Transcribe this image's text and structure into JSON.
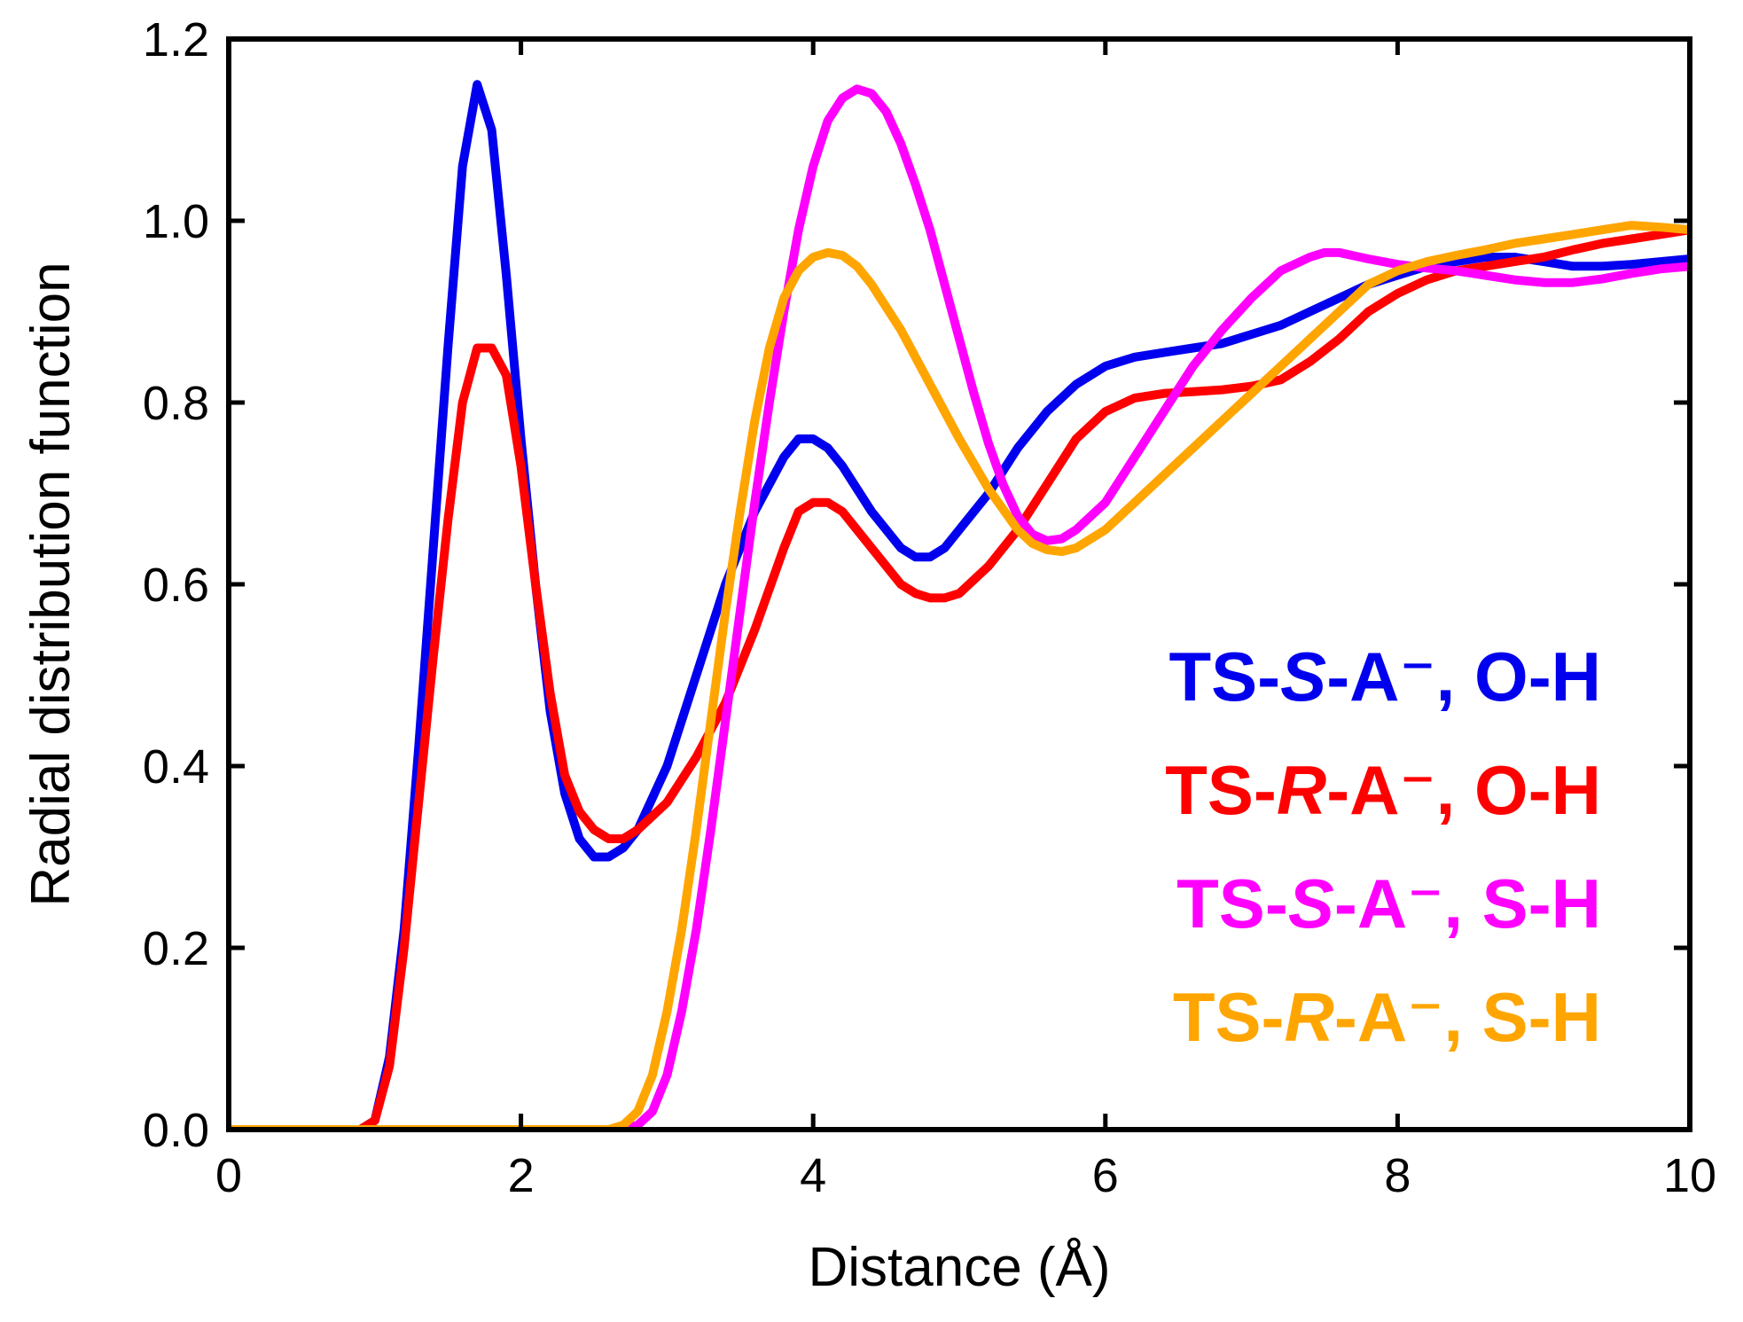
{
  "chart_data": {
    "type": "line",
    "title": "",
    "xlabel": "Distance (Å)",
    "ylabel": "Radial distribution function",
    "xlim": [
      0,
      10
    ],
    "ylim": [
      0,
      1.2
    ],
    "x_ticks": [
      0,
      2,
      4,
      6,
      8,
      10
    ],
    "y_ticks": [
      0,
      0.2,
      0.4,
      0.6,
      0.8,
      1.0,
      1.2
    ],
    "x_tick_labels": [
      "0",
      "2",
      "4",
      "6",
      "8",
      "10"
    ],
    "y_tick_labels": [
      "0.0",
      "0.2",
      "0.4",
      "0.6",
      "0.8",
      "1.0",
      "1.2"
    ],
    "grid": false,
    "legend_position": "right",
    "series": [
      {
        "name": "TS-S-A⁻, O-H",
        "legend_parts": [
          {
            "text": "TS-",
            "italic": false
          },
          {
            "text": "S",
            "italic": true
          },
          {
            "text": "-A⁻, O-H",
            "italic": false
          }
        ],
        "color": "#0000ee",
        "points": [
          [
            0,
            0
          ],
          [
            0.9,
            0
          ],
          [
            1.0,
            0.01
          ],
          [
            1.1,
            0.08
          ],
          [
            1.2,
            0.22
          ],
          [
            1.3,
            0.42
          ],
          [
            1.4,
            0.64
          ],
          [
            1.5,
            0.86
          ],
          [
            1.6,
            1.06
          ],
          [
            1.7,
            1.15
          ],
          [
            1.8,
            1.1
          ],
          [
            1.9,
            0.94
          ],
          [
            2.0,
            0.76
          ],
          [
            2.1,
            0.6
          ],
          [
            2.2,
            0.46
          ],
          [
            2.3,
            0.37
          ],
          [
            2.4,
            0.32
          ],
          [
            2.5,
            0.3
          ],
          [
            2.6,
            0.3
          ],
          [
            2.7,
            0.31
          ],
          [
            2.8,
            0.33
          ],
          [
            3.0,
            0.4
          ],
          [
            3.2,
            0.5
          ],
          [
            3.4,
            0.6
          ],
          [
            3.6,
            0.68
          ],
          [
            3.8,
            0.74
          ],
          [
            3.9,
            0.76
          ],
          [
            4.0,
            0.76
          ],
          [
            4.1,
            0.75
          ],
          [
            4.2,
            0.73
          ],
          [
            4.4,
            0.68
          ],
          [
            4.6,
            0.64
          ],
          [
            4.7,
            0.63
          ],
          [
            4.8,
            0.63
          ],
          [
            4.9,
            0.64
          ],
          [
            5.0,
            0.66
          ],
          [
            5.2,
            0.7
          ],
          [
            5.4,
            0.75
          ],
          [
            5.6,
            0.79
          ],
          [
            5.8,
            0.82
          ],
          [
            6.0,
            0.84
          ],
          [
            6.2,
            0.85
          ],
          [
            6.4,
            0.855
          ],
          [
            6.6,
            0.86
          ],
          [
            6.8,
            0.865
          ],
          [
            7.0,
            0.875
          ],
          [
            7.2,
            0.885
          ],
          [
            7.4,
            0.9
          ],
          [
            7.6,
            0.915
          ],
          [
            7.8,
            0.93
          ],
          [
            8.0,
            0.94
          ],
          [
            8.2,
            0.95
          ],
          [
            8.4,
            0.955
          ],
          [
            8.6,
            0.96
          ],
          [
            8.8,
            0.96
          ],
          [
            9.0,
            0.955
          ],
          [
            9.2,
            0.95
          ],
          [
            9.4,
            0.95
          ],
          [
            9.6,
            0.952
          ],
          [
            9.8,
            0.955
          ],
          [
            10.0,
            0.958
          ]
        ]
      },
      {
        "name": "TS-R-A⁻, O-H",
        "legend_parts": [
          {
            "text": "TS-",
            "italic": false
          },
          {
            "text": "R",
            "italic": true
          },
          {
            "text": "-A⁻, O-H",
            "italic": false
          }
        ],
        "color": "#ff0000",
        "points": [
          [
            0,
            0
          ],
          [
            0.9,
            0
          ],
          [
            1.0,
            0.01
          ],
          [
            1.1,
            0.07
          ],
          [
            1.2,
            0.2
          ],
          [
            1.3,
            0.36
          ],
          [
            1.4,
            0.52
          ],
          [
            1.5,
            0.67
          ],
          [
            1.6,
            0.8
          ],
          [
            1.7,
            0.86
          ],
          [
            1.8,
            0.86
          ],
          [
            1.9,
            0.83
          ],
          [
            2.0,
            0.73
          ],
          [
            2.1,
            0.6
          ],
          [
            2.2,
            0.48
          ],
          [
            2.3,
            0.39
          ],
          [
            2.4,
            0.35
          ],
          [
            2.5,
            0.33
          ],
          [
            2.6,
            0.32
          ],
          [
            2.7,
            0.32
          ],
          [
            2.8,
            0.33
          ],
          [
            3.0,
            0.36
          ],
          [
            3.2,
            0.41
          ],
          [
            3.4,
            0.47
          ],
          [
            3.6,
            0.55
          ],
          [
            3.8,
            0.64
          ],
          [
            3.9,
            0.68
          ],
          [
            4.0,
            0.69
          ],
          [
            4.1,
            0.69
          ],
          [
            4.2,
            0.68
          ],
          [
            4.4,
            0.64
          ],
          [
            4.6,
            0.6
          ],
          [
            4.7,
            0.59
          ],
          [
            4.8,
            0.585
          ],
          [
            4.9,
            0.585
          ],
          [
            5.0,
            0.59
          ],
          [
            5.2,
            0.62
          ],
          [
            5.4,
            0.66
          ],
          [
            5.6,
            0.71
          ],
          [
            5.8,
            0.76
          ],
          [
            6.0,
            0.79
          ],
          [
            6.2,
            0.805
          ],
          [
            6.4,
            0.81
          ],
          [
            6.6,
            0.812
          ],
          [
            6.8,
            0.814
          ],
          [
            7.0,
            0.818
          ],
          [
            7.2,
            0.825
          ],
          [
            7.4,
            0.845
          ],
          [
            7.6,
            0.87
          ],
          [
            7.8,
            0.9
          ],
          [
            8.0,
            0.92
          ],
          [
            8.2,
            0.935
          ],
          [
            8.4,
            0.945
          ],
          [
            8.6,
            0.95
          ],
          [
            8.8,
            0.955
          ],
          [
            9.0,
            0.96
          ],
          [
            9.2,
            0.968
          ],
          [
            9.4,
            0.975
          ],
          [
            9.6,
            0.98
          ],
          [
            9.8,
            0.985
          ],
          [
            10.0,
            0.99
          ]
        ]
      },
      {
        "name": "TS-S-A⁻, S-H",
        "legend_parts": [
          {
            "text": "TS-",
            "italic": false
          },
          {
            "text": "S",
            "italic": true
          },
          {
            "text": "-A⁻, S-H",
            "italic": false
          }
        ],
        "color": "#ff00ff",
        "points": [
          [
            0,
            0
          ],
          [
            2.7,
            0
          ],
          [
            2.8,
            0.005
          ],
          [
            2.9,
            0.02
          ],
          [
            3.0,
            0.06
          ],
          [
            3.1,
            0.13
          ],
          [
            3.2,
            0.22
          ],
          [
            3.3,
            0.33
          ],
          [
            3.4,
            0.45
          ],
          [
            3.5,
            0.57
          ],
          [
            3.6,
            0.69
          ],
          [
            3.7,
            0.8
          ],
          [
            3.8,
            0.9
          ],
          [
            3.9,
            0.99
          ],
          [
            4.0,
            1.06
          ],
          [
            4.1,
            1.11
          ],
          [
            4.2,
            1.135
          ],
          [
            4.3,
            1.145
          ],
          [
            4.4,
            1.14
          ],
          [
            4.5,
            1.12
          ],
          [
            4.6,
            1.085
          ],
          [
            4.7,
            1.04
          ],
          [
            4.8,
            0.99
          ],
          [
            4.9,
            0.93
          ],
          [
            5.0,
            0.87
          ],
          [
            5.1,
            0.81
          ],
          [
            5.2,
            0.755
          ],
          [
            5.3,
            0.71
          ],
          [
            5.4,
            0.675
          ],
          [
            5.5,
            0.655
          ],
          [
            5.6,
            0.648
          ],
          [
            5.7,
            0.65
          ],
          [
            5.8,
            0.66
          ],
          [
            6.0,
            0.69
          ],
          [
            6.2,
            0.74
          ],
          [
            6.4,
            0.79
          ],
          [
            6.6,
            0.84
          ],
          [
            6.8,
            0.88
          ],
          [
            7.0,
            0.915
          ],
          [
            7.2,
            0.945
          ],
          [
            7.4,
            0.96
          ],
          [
            7.5,
            0.965
          ],
          [
            7.6,
            0.965
          ],
          [
            7.8,
            0.958
          ],
          [
            8.0,
            0.952
          ],
          [
            8.2,
            0.948
          ],
          [
            8.4,
            0.945
          ],
          [
            8.6,
            0.94
          ],
          [
            8.8,
            0.935
          ],
          [
            9.0,
            0.932
          ],
          [
            9.2,
            0.932
          ],
          [
            9.4,
            0.936
          ],
          [
            9.6,
            0.942
          ],
          [
            9.8,
            0.947
          ],
          [
            10.0,
            0.95
          ]
        ]
      },
      {
        "name": "TS-R-A⁻, S-H",
        "legend_parts": [
          {
            "text": "TS-",
            "italic": false
          },
          {
            "text": "R",
            "italic": true
          },
          {
            "text": "-A⁻, S-H",
            "italic": false
          }
        ],
        "color": "#ffa500",
        "points": [
          [
            0,
            0
          ],
          [
            2.6,
            0
          ],
          [
            2.7,
            0.005
          ],
          [
            2.8,
            0.02
          ],
          [
            2.9,
            0.06
          ],
          [
            3.0,
            0.13
          ],
          [
            3.1,
            0.22
          ],
          [
            3.2,
            0.33
          ],
          [
            3.3,
            0.45
          ],
          [
            3.4,
            0.57
          ],
          [
            3.5,
            0.68
          ],
          [
            3.6,
            0.78
          ],
          [
            3.7,
            0.86
          ],
          [
            3.8,
            0.915
          ],
          [
            3.9,
            0.945
          ],
          [
            4.0,
            0.96
          ],
          [
            4.1,
            0.965
          ],
          [
            4.2,
            0.962
          ],
          [
            4.3,
            0.95
          ],
          [
            4.4,
            0.93
          ],
          [
            4.6,
            0.88
          ],
          [
            4.8,
            0.82
          ],
          [
            5.0,
            0.76
          ],
          [
            5.2,
            0.705
          ],
          [
            5.4,
            0.66
          ],
          [
            5.5,
            0.645
          ],
          [
            5.6,
            0.638
          ],
          [
            5.7,
            0.636
          ],
          [
            5.8,
            0.64
          ],
          [
            6.0,
            0.66
          ],
          [
            6.2,
            0.69
          ],
          [
            6.4,
            0.72
          ],
          [
            6.6,
            0.75
          ],
          [
            6.8,
            0.78
          ],
          [
            7.0,
            0.81
          ],
          [
            7.2,
            0.84
          ],
          [
            7.4,
            0.87
          ],
          [
            7.6,
            0.9
          ],
          [
            7.8,
            0.93
          ],
          [
            8.0,
            0.945
          ],
          [
            8.2,
            0.955
          ],
          [
            8.4,
            0.962
          ],
          [
            8.6,
            0.968
          ],
          [
            8.8,
            0.975
          ],
          [
            9.0,
            0.98
          ],
          [
            9.2,
            0.985
          ],
          [
            9.4,
            0.99
          ],
          [
            9.6,
            0.995
          ],
          [
            9.8,
            0.993
          ],
          [
            10.0,
            0.99
          ]
        ]
      }
    ]
  }
}
